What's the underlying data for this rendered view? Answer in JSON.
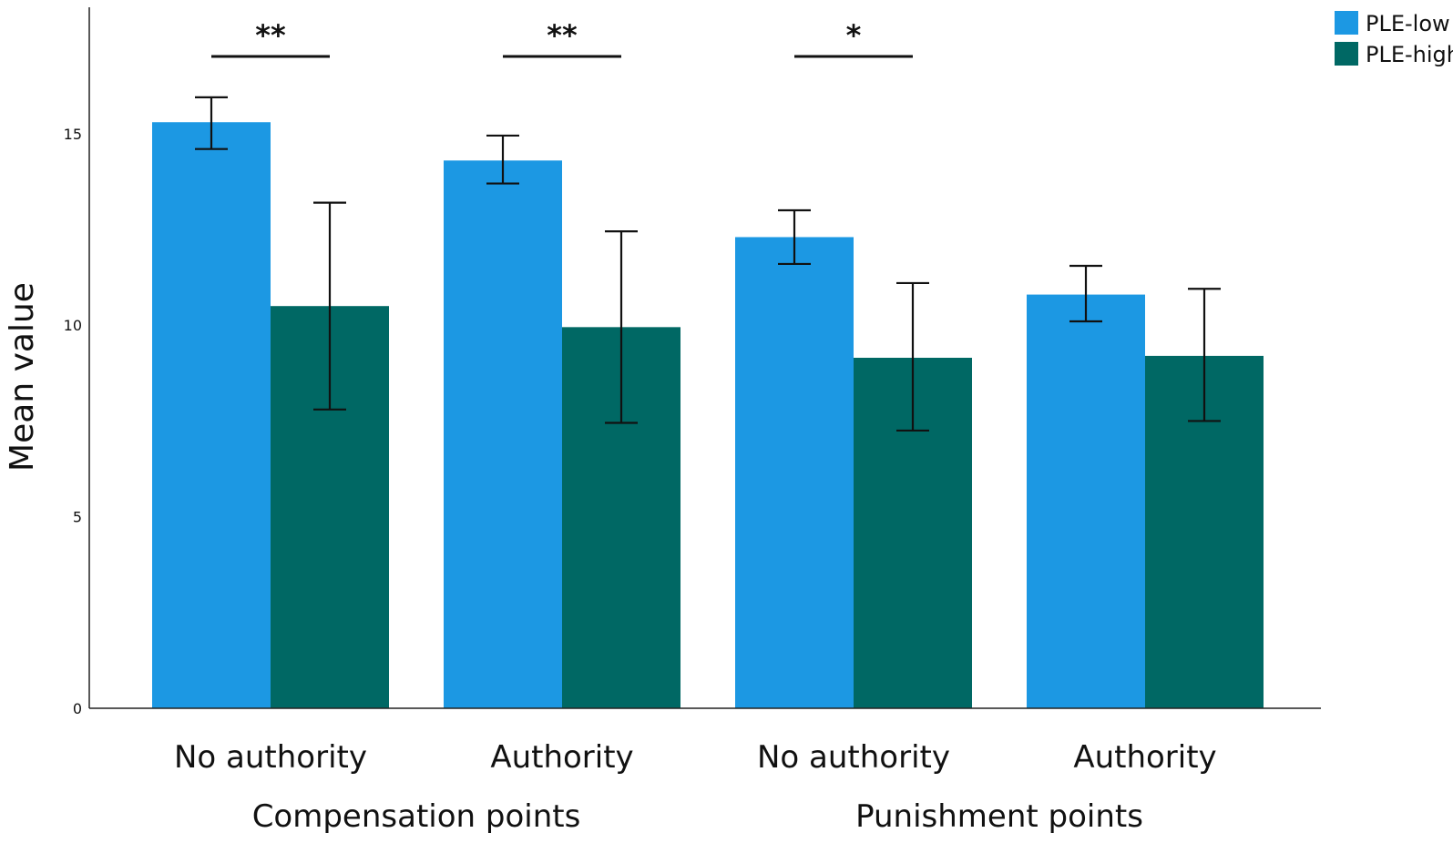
{
  "chart_data": {
    "type": "bar",
    "title": "",
    "xlabel": "",
    "ylabel": "Mean value",
    "ylim": [
      0,
      18.3
    ],
    "yticks": [
      0,
      5,
      10,
      15
    ],
    "grid": false,
    "legend_position": "top-right",
    "categories": [
      "No authority",
      "Authority",
      "No authority",
      "Authority"
    ],
    "groups": [
      {
        "label": "Compensation points",
        "categories": [
          0,
          1
        ]
      },
      {
        "label": "Punishment points",
        "categories": [
          2,
          3
        ]
      }
    ],
    "series": [
      {
        "name": "PLE-low",
        "color": "#1c98e3",
        "values": [
          15.3,
          14.3,
          12.3,
          10.8
        ],
        "error_low": [
          14.6,
          13.7,
          11.6,
          10.1
        ],
        "error_high": [
          15.95,
          14.95,
          13.0,
          11.55
        ]
      },
      {
        "name": "PLE-high",
        "color": "#006864",
        "values": [
          10.5,
          9.95,
          9.15,
          9.2
        ],
        "error_low": [
          7.8,
          7.45,
          7.25,
          7.5
        ],
        "error_high": [
          13.2,
          12.45,
          11.1,
          10.95
        ]
      }
    ],
    "significance": [
      {
        "category": 0,
        "label": "**"
      },
      {
        "category": 1,
        "label": "**"
      },
      {
        "category": 2,
        "label": "*"
      }
    ]
  }
}
